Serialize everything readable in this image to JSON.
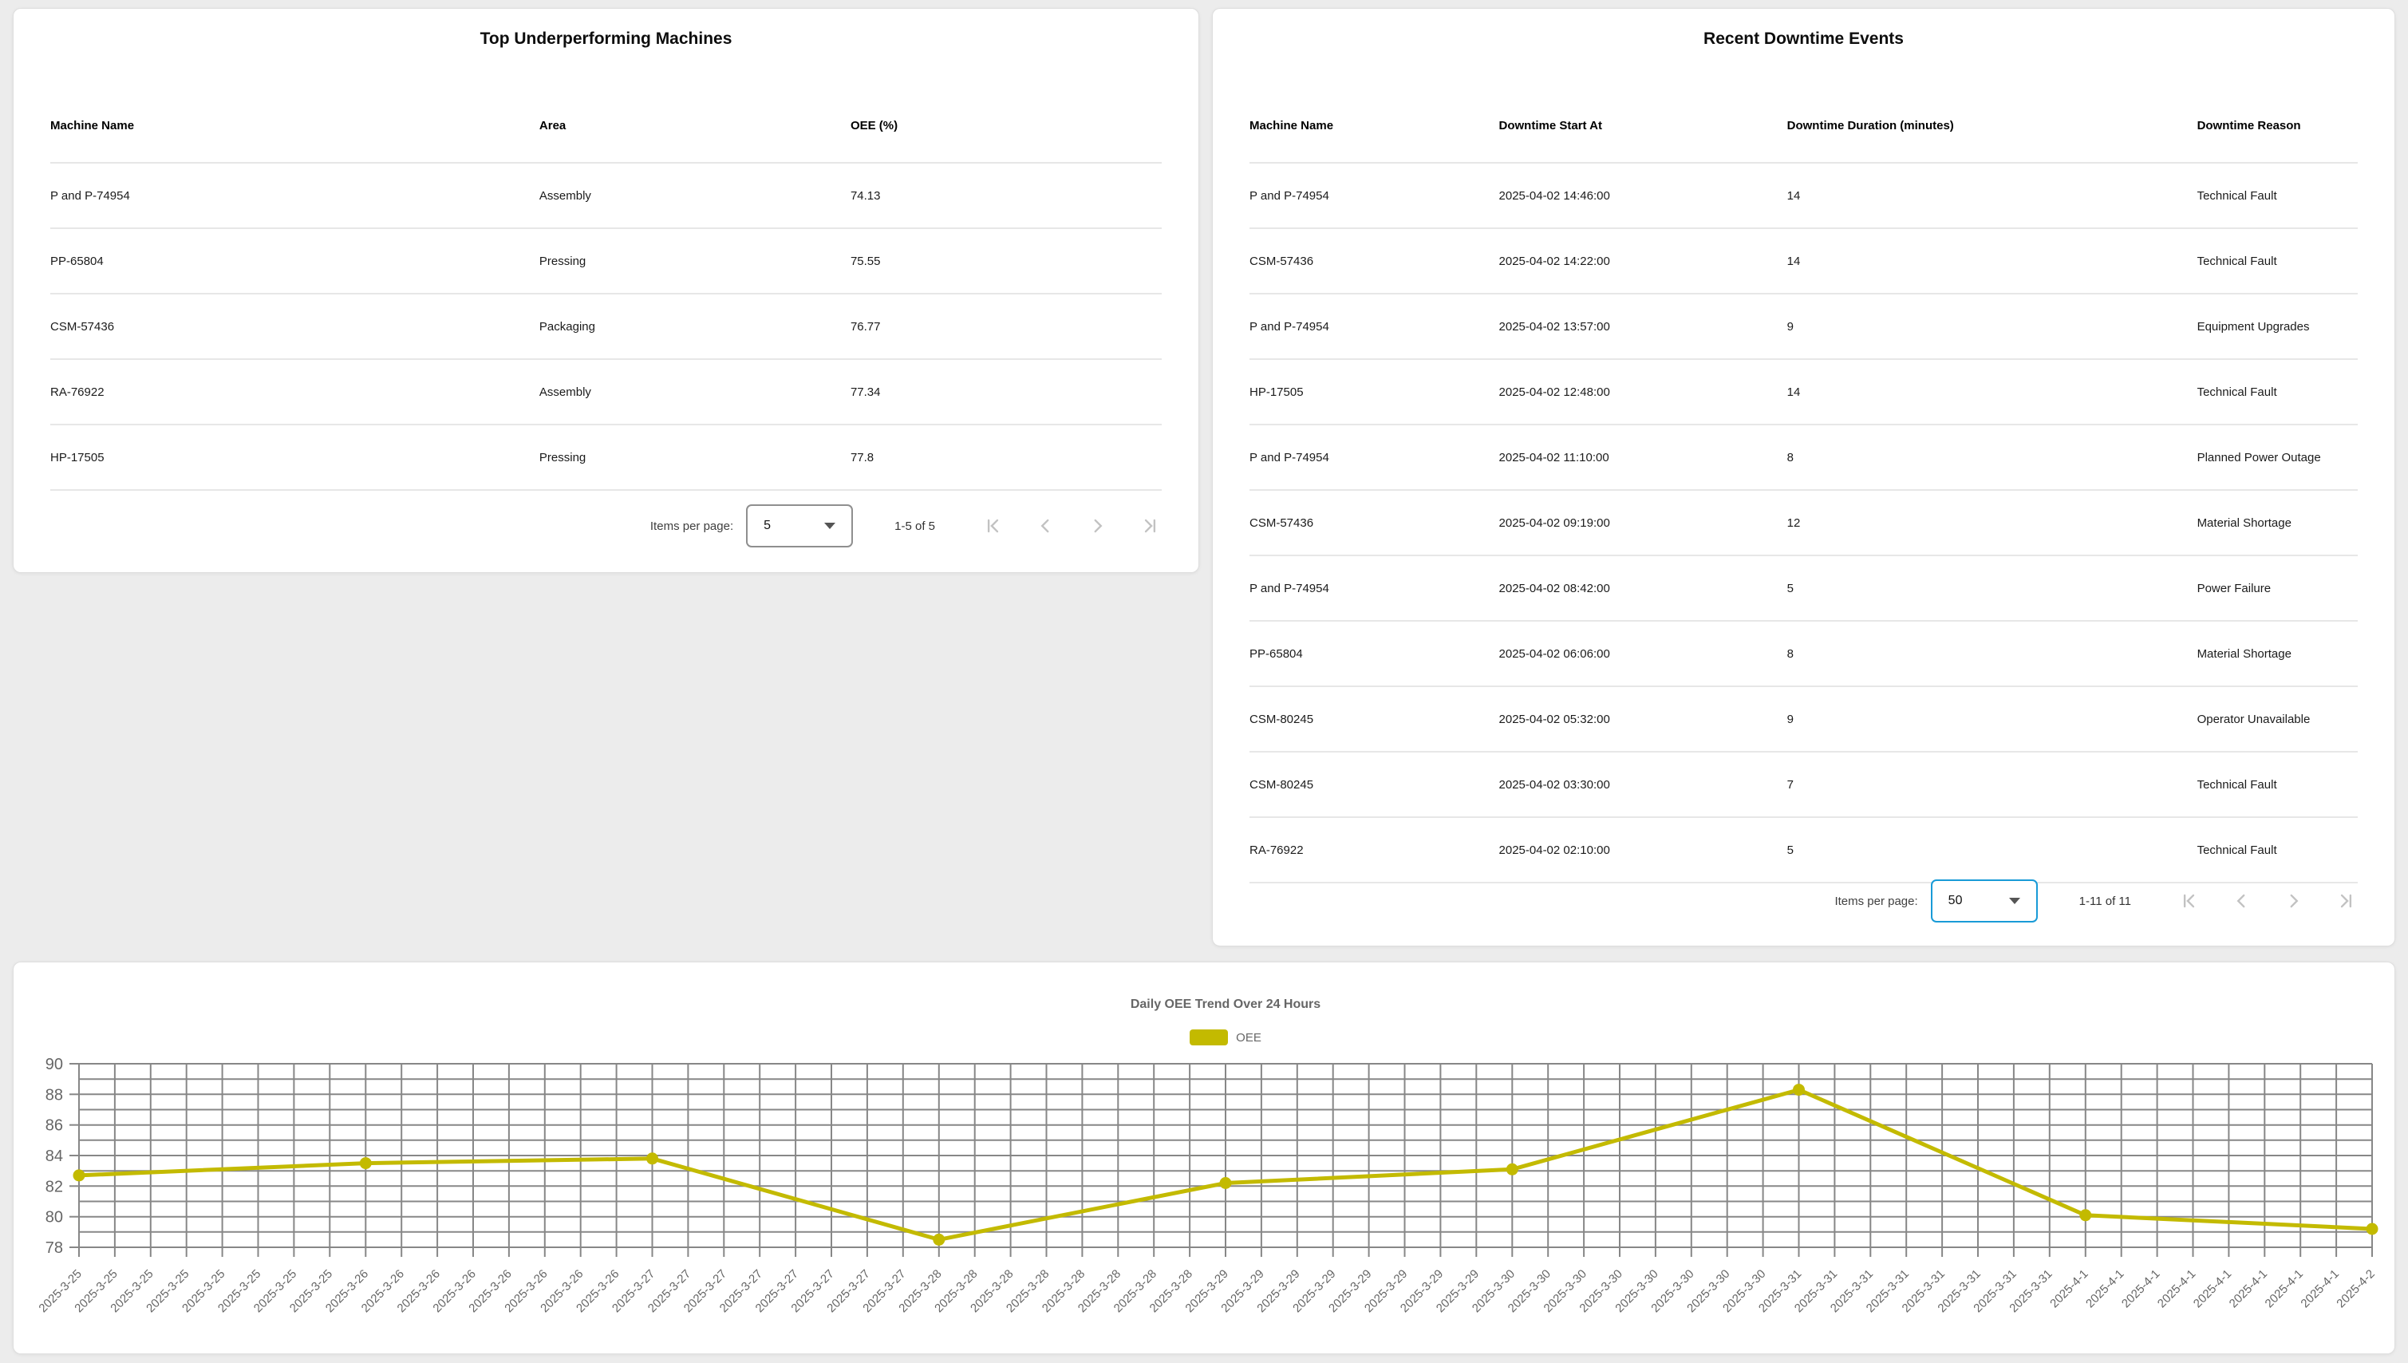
{
  "colors": {
    "accent_blue": "#199bd7",
    "line_yellow": "#c3ba00",
    "disabled_icon": "#c2c2c2",
    "grid_gray": "#878787",
    "axis_text_gray": "#666666"
  },
  "left_card": {
    "title": "Top Underperforming Machines",
    "columns": [
      "Machine Name",
      "Area",
      "OEE (%)"
    ],
    "rows": [
      [
        "P and P-74954",
        "Assembly",
        "74.13"
      ],
      [
        "PP-65804",
        "Pressing",
        "75.55"
      ],
      [
        "CSM-57436",
        "Packaging",
        "76.77"
      ],
      [
        "RA-76922",
        "Assembly",
        "77.34"
      ],
      [
        "HP-17505",
        "Pressing",
        "77.8"
      ]
    ],
    "paginator": {
      "items_per_page_label": "Items per page:",
      "page_size": "5",
      "range_label": "1-5 of 5"
    }
  },
  "right_card": {
    "title": "Recent Downtime Events",
    "columns": [
      "Machine Name",
      "Downtime Start At",
      "Downtime Duration (minutes)",
      "Downtime Reason"
    ],
    "rows": [
      [
        "P and P-74954",
        "2025-04-02 14:46:00",
        "14",
        "Technical Fault"
      ],
      [
        "CSM-57436",
        "2025-04-02 14:22:00",
        "14",
        "Technical Fault"
      ],
      [
        "P and P-74954",
        "2025-04-02 13:57:00",
        "9",
        "Equipment Upgrades"
      ],
      [
        "HP-17505",
        "2025-04-02 12:48:00",
        "14",
        "Technical Fault"
      ],
      [
        "P and P-74954",
        "2025-04-02 11:10:00",
        "8",
        "Planned Power Outage"
      ],
      [
        "CSM-57436",
        "2025-04-02 09:19:00",
        "12",
        "Material Shortage"
      ],
      [
        "P and P-74954",
        "2025-04-02 08:42:00",
        "5",
        "Power Failure"
      ],
      [
        "PP-65804",
        "2025-04-02 06:06:00",
        "8",
        "Material Shortage"
      ],
      [
        "CSM-80245",
        "2025-04-02 05:32:00",
        "9",
        "Operator Unavailable"
      ],
      [
        "CSM-80245",
        "2025-04-02 03:30:00",
        "7",
        "Technical Fault"
      ],
      [
        "RA-76922",
        "2025-04-02 02:10:00",
        "5",
        "Technical Fault"
      ]
    ],
    "paginator": {
      "items_per_page_label": "Items per page:",
      "page_size": "50",
      "range_label": "1-11 of 11"
    }
  },
  "paginator_nav_icons": [
    "first-page-icon",
    "chevron-left-icon",
    "chevron-right-icon",
    "last-page-icon"
  ],
  "chart_data": {
    "type": "line",
    "title": "Daily OEE Trend Over 24 Hours",
    "xlabel": "",
    "ylabel": "",
    "ylim": [
      78,
      90
    ],
    "y_ticks": [
      78,
      80,
      82,
      84,
      86,
      88,
      90
    ],
    "y_minor_step": 1,
    "grid": true,
    "legend_position": "top",
    "legend": [
      "OEE"
    ],
    "x_labels": [
      "2025-3-25",
      "2025-3-25",
      "2025-3-25",
      "2025-3-25",
      "2025-3-25",
      "2025-3-25",
      "2025-3-25",
      "2025-3-25",
      "2025-3-26",
      "2025-3-26",
      "2025-3-26",
      "2025-3-26",
      "2025-3-26",
      "2025-3-26",
      "2025-3-26",
      "2025-3-26",
      "2025-3-27",
      "2025-3-27",
      "2025-3-27",
      "2025-3-27",
      "2025-3-27",
      "2025-3-27",
      "2025-3-27",
      "2025-3-27",
      "2025-3-28",
      "2025-3-28",
      "2025-3-28",
      "2025-3-28",
      "2025-3-28",
      "2025-3-28",
      "2025-3-28",
      "2025-3-28",
      "2025-3-29",
      "2025-3-29",
      "2025-3-29",
      "2025-3-29",
      "2025-3-29",
      "2025-3-29",
      "2025-3-29",
      "2025-3-29",
      "2025-3-30",
      "2025-3-30",
      "2025-3-30",
      "2025-3-30",
      "2025-3-30",
      "2025-3-30",
      "2025-3-30",
      "2025-3-30",
      "2025-3-31",
      "2025-3-31",
      "2025-3-31",
      "2025-3-31",
      "2025-3-31",
      "2025-3-31",
      "2025-3-31",
      "2025-3-31",
      "2025-4-1",
      "2025-4-1",
      "2025-4-1",
      "2025-4-1",
      "2025-4-1",
      "2025-4-1",
      "2025-4-1",
      "2025-4-1",
      "2025-4-2"
    ],
    "series": [
      {
        "name": "OEE",
        "color": "#c3ba00",
        "x": [
          "2025-3-25",
          "2025-3-26",
          "2025-3-27",
          "2025-3-28",
          "2025-3-29",
          "2025-3-30",
          "2025-3-31",
          "2025-4-1",
          "2025-4-2"
        ],
        "x_indices": [
          0,
          8,
          16,
          24,
          32,
          40,
          48,
          56,
          64
        ],
        "values": [
          82.7,
          83.5,
          83.8,
          78.5,
          82.2,
          83.1,
          88.3,
          80.1,
          79.2
        ]
      }
    ]
  }
}
